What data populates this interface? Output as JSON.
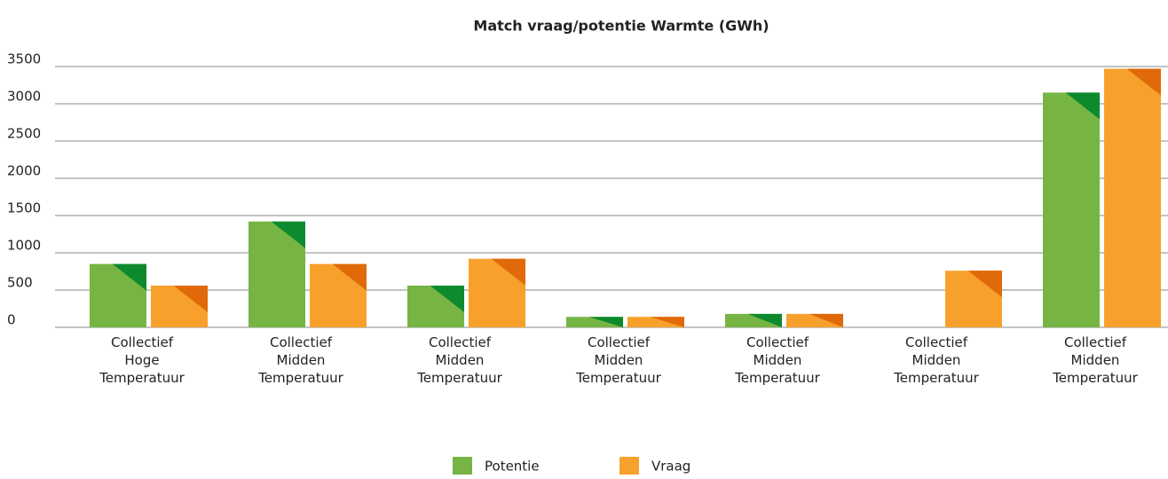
{
  "chart_data": {
    "type": "bar",
    "title": "Match vraag/potentie Warmte (GWh)",
    "categories": [
      "Collectief\nHoge\nTemperatuur",
      "Collectief\nMidden\nTemperatuur",
      "Collectief\nMidden\nTemperatuur",
      "Collectief\nMidden\nTemperatuur",
      "Collectief\nMidden\nTemperatuur",
      "Collectief\nMidden\nTemperatuur",
      "Collectief\nMidden\nTemperatuur"
    ],
    "series": [
      {
        "name": "Potentie",
        "color": "#76b543",
        "accent": "#0e8a2e",
        "values": [
          850,
          1420,
          560,
          140,
          180,
          0,
          3150
        ]
      },
      {
        "name": "Vraag",
        "color": "#f7a12c",
        "accent": "#e06a0a",
        "values": [
          560,
          850,
          920,
          140,
          180,
          760,
          3470
        ]
      }
    ],
    "ylim": [
      0,
      3500
    ],
    "yticks": [
      0,
      500,
      1000,
      1500,
      2000,
      2500,
      3000,
      3500
    ],
    "grid": true,
    "legend": "bottom"
  }
}
